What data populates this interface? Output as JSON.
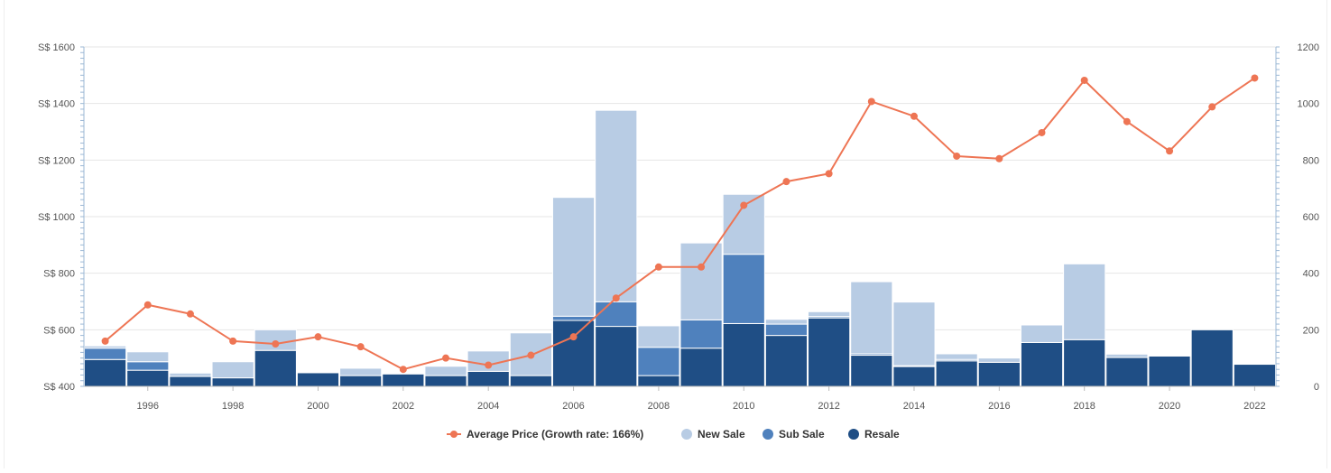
{
  "chart_data": {
    "type": "bar",
    "stacked": true,
    "categories": [
      "1995",
      "1996",
      "1997",
      "1998",
      "1999",
      "2000",
      "2001",
      "2002",
      "2003",
      "2004",
      "2005",
      "2006",
      "2007",
      "2008",
      "2009",
      "2010",
      "2011",
      "2012",
      "2013",
      "2014",
      "2015",
      "2016",
      "2017",
      "2018",
      "2019",
      "2020",
      "2021",
      "2022"
    ],
    "x_tick_labels": [
      "1996",
      "1998",
      "2000",
      "2002",
      "2004",
      "2006",
      "2008",
      "2010",
      "2012",
      "2014",
      "2016",
      "2018",
      "2020",
      "2022"
    ],
    "series": [
      {
        "name": "Resale",
        "type": "bar",
        "axis": "right",
        "color": "#1f4e85",
        "values": [
          95,
          57,
          35,
          30,
          127,
          48,
          38,
          44,
          38,
          53,
          38,
          233,
          212,
          38,
          135,
          222,
          180,
          242,
          110,
          70,
          90,
          85,
          155,
          165,
          102,
          107,
          200,
          78
        ]
      },
      {
        "name": "Sub Sale",
        "type": "bar",
        "axis": "right",
        "color": "#4f81bd",
        "values": [
          40,
          30,
          0,
          0,
          0,
          0,
          0,
          0,
          0,
          0,
          0,
          15,
          87,
          100,
          100,
          245,
          40,
          5,
          5,
          3,
          5,
          0,
          0,
          0,
          0,
          0,
          0,
          0
        ]
      },
      {
        "name": "New Sale",
        "type": "bar",
        "axis": "right",
        "color": "#b8cce4",
        "values": [
          8,
          35,
          12,
          57,
          73,
          0,
          26,
          3,
          33,
          72,
          151,
          420,
          677,
          76,
          272,
          212,
          17,
          17,
          255,
          225,
          20,
          15,
          62,
          268,
          12,
          0,
          0,
          0
        ]
      },
      {
        "name": "Average Price (Growth rate: 166%)",
        "type": "line",
        "axis": "left",
        "color": "#ee7554",
        "values": [
          560,
          688,
          656,
          560,
          550,
          575,
          540,
          460,
          500,
          475,
          510,
          575,
          712,
          822,
          822,
          1040,
          1124,
          1152,
          1407,
          1355,
          1214,
          1205,
          1297,
          1482,
          1336,
          1232,
          1388,
          1490
        ]
      }
    ],
    "y_left": {
      "ylim": [
        400,
        1600
      ],
      "ticks": [
        "S$ 400",
        "S$ 600",
        "S$ 800",
        "S$ 1000",
        "S$ 1200",
        "S$ 1400",
        "S$ 1600"
      ]
    },
    "y_right": {
      "ylim": [
        0,
        1200
      ],
      "ticks": [
        "0",
        "200",
        "400",
        "600",
        "800",
        "1000",
        "1200"
      ]
    },
    "grid": true,
    "legend_position": "bottom"
  },
  "legend": {
    "items": [
      {
        "label": "Average Price (Growth rate: 166%)",
        "color": "#ee7554",
        "symbol": "line-marker"
      },
      {
        "label": "New Sale",
        "color": "#b8cce4",
        "symbol": "circle"
      },
      {
        "label": "Sub Sale",
        "color": "#4f81bd",
        "symbol": "circle"
      },
      {
        "label": "Resale",
        "color": "#1f4e85",
        "symbol": "circle"
      }
    ]
  }
}
